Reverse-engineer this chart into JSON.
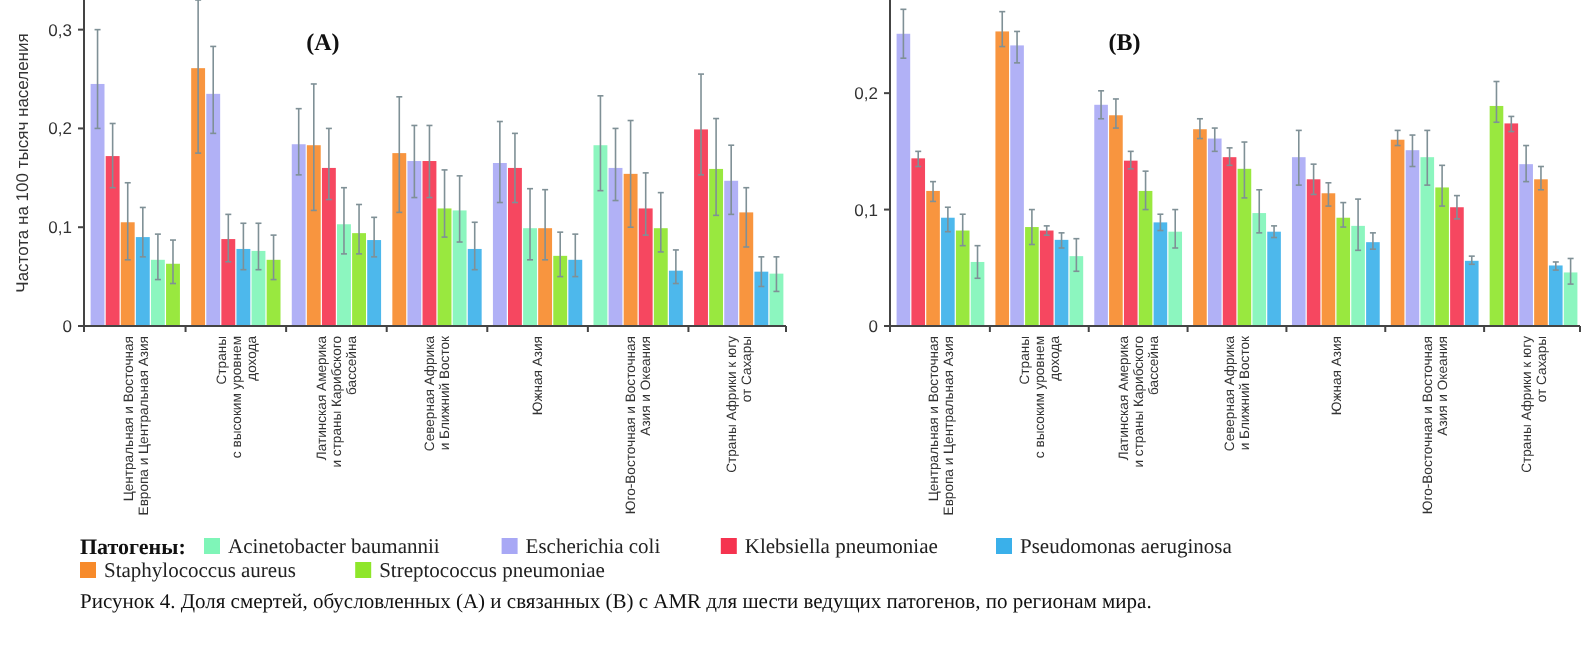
{
  "chart_data": [
    {
      "type": "bar",
      "title": "(A)",
      "ylabel": "Частота на 100 тысяч населения",
      "legend": "bottom",
      "legend_title": "Патогены:",
      "categories": [
        "Центральная и Восточная\nЕвропа и Центральная Азия",
        "Страны\nс высоким уровнем\nдохода",
        "Латинская Америка\nи страны Карибского\nбассейна",
        "Северная Африка\nи Ближний Восток",
        "Южная Азия",
        "Юго-Восточная и Восточная\nАзия и Океания",
        "Страны Африки к югу\nот Сахары"
      ],
      "ylim": [
        0,
        0.33
      ],
      "yticks": [
        0,
        {
          "value": 0.1,
          "label": "0,1"
        },
        {
          "value": 0.2,
          "label": "0,2"
        },
        {
          "value": 0.3,
          "label": "0,3"
        }
      ],
      "series": [
        {
          "name": "Acinetobacter baumannii",
          "color": "#7ff5b8",
          "values": [
            0.067,
            0.076,
            0.103,
            0.117,
            0.099,
            0.183,
            0.053
          ],
          "errors": [
            [
              0.047,
              0.093
            ],
            [
              0.057,
              0.104
            ],
            [
              0.073,
              0.14
            ],
            [
              0.085,
              0.152
            ],
            [
              0.067,
              0.139
            ],
            [
              0.137,
              0.233
            ],
            [
              0.035,
              0.07
            ]
          ]
        },
        {
          "name": "Escherichia coli",
          "color": "#a8a8f5",
          "values": [
            0.245,
            0.235,
            0.184,
            0.167,
            0.165,
            0.16,
            0.147
          ],
          "errors": [
            [
              0.2,
              0.3
            ],
            [
              0.195,
              0.283
            ],
            [
              0.153,
              0.22
            ],
            [
              0.13,
              0.203
            ],
            [
              0.125,
              0.207
            ],
            [
              0.127,
              0.2
            ],
            [
              0.113,
              0.183
            ]
          ]
        },
        {
          "name": "Klebsiella pneumoniae",
          "color": "#f5334f",
          "values": [
            0.172,
            0.088,
            0.16,
            0.167,
            0.16,
            0.119,
            0.199
          ],
          "errors": [
            [
              0.14,
              0.205
            ],
            [
              0.065,
              0.113
            ],
            [
              0.128,
              0.2
            ],
            [
              0.13,
              0.203
            ],
            [
              0.125,
              0.195
            ],
            [
              0.092,
              0.155
            ],
            [
              0.153,
              0.255
            ]
          ]
        },
        {
          "name": "Pseudomonas aeruginosa",
          "color": "#3ab0ea",
          "values": [
            0.09,
            0.078,
            0.087,
            0.078,
            0.067,
            0.056,
            0.055
          ],
          "errors": [
            [
              0.07,
              0.12
            ],
            [
              0.057,
              0.104
            ],
            [
              0.07,
              0.11
            ],
            [
              0.057,
              0.105
            ],
            [
              0.05,
              0.093
            ],
            [
              0.043,
              0.077
            ],
            [
              0.04,
              0.07
            ]
          ]
        },
        {
          "name": "Staphylococcus aureus",
          "color": "#f78a2a",
          "values": [
            0.105,
            0.261,
            0.183,
            0.175,
            0.099,
            0.154,
            0.115
          ],
          "errors": [
            [
              0.067,
              0.145
            ],
            [
              0.175,
              0.33
            ],
            [
              0.117,
              0.245
            ],
            [
              0.115,
              0.232
            ],
            [
              0.067,
              0.138
            ],
            [
              0.1,
              0.208
            ],
            [
              0.08,
              0.14
            ]
          ]
        },
        {
          "name": "Streptococcus pneumoniae",
          "color": "#8ee62a",
          "values": [
            0.063,
            0.067,
            0.094,
            0.119,
            0.071,
            0.099,
            0.159
          ],
          "errors": [
            [
              0.043,
              0.087
            ],
            [
              0.047,
              0.092
            ],
            [
              0.073,
              0.123
            ],
            [
              0.09,
              0.158
            ],
            [
              0.05,
              0.095
            ],
            [
              0.075,
              0.135
            ],
            [
              0.112,
              0.21
            ]
          ]
        }
      ],
      "annotations": [
        "Рисунок 4. Доля смертей, обусловленных (A) и связанных (B) с AMR для шести ведущих патогенов, по регионам мира."
      ]
    },
    {
      "type": "bar",
      "title": "(B)",
      "categories": [
        "Центральная и Восточная\nЕвропа и Центральная Азия",
        "Страны\nс высоким уровнем\nдохода",
        "Латинская Америка\nи страны Карибского\nбассейна",
        "Северная Африка\nи Ближний Восток",
        "Южная Азия",
        "Юго-Восточная и Восточная\nАзия и Океания",
        "Страны Африки к югу\nот Сахары"
      ],
      "ylim": [
        0,
        0.28
      ],
      "yticks": [
        0,
        {
          "value": 0.1,
          "label": "0,1"
        },
        {
          "value": 0.2,
          "label": "0,2"
        }
      ],
      "series": [
        {
          "color": "#7ff5b8",
          "values": [
            0.055,
            0.06,
            0.081,
            0.097,
            0.086,
            0.145,
            0.046
          ],
          "errors": [
            [
              0.041,
              0.069
            ],
            [
              0.047,
              0.075
            ],
            [
              0.067,
              0.1
            ],
            [
              0.08,
              0.117
            ],
            [
              0.065,
              0.109
            ],
            [
              0.121,
              0.168
            ],
            [
              0.036,
              0.058
            ]
          ]
        },
        {
          "color": "#a8a8f5",
          "values": [
            0.251,
            0.241,
            0.19,
            0.161,
            0.145,
            0.151,
            0.139
          ],
          "errors": [
            [
              0.23,
              0.272
            ],
            [
              0.226,
              0.253
            ],
            [
              0.178,
              0.202
            ],
            [
              0.15,
              0.17
            ],
            [
              0.121,
              0.168
            ],
            [
              0.137,
              0.164
            ],
            [
              0.124,
              0.155
            ]
          ]
        },
        {
          "color": "#f5334f",
          "values": [
            0.144,
            0.082,
            0.142,
            0.145,
            0.126,
            0.102,
            0.174
          ],
          "errors": [
            [
              0.137,
              0.15
            ],
            [
              0.078,
              0.086
            ],
            [
              0.135,
              0.15
            ],
            [
              0.138,
              0.153
            ],
            [
              0.113,
              0.139
            ],
            [
              0.092,
              0.112
            ],
            [
              0.167,
              0.18
            ]
          ]
        },
        {
          "color": "#3ab0ea",
          "values": [
            0.093,
            0.074,
            0.089,
            0.081,
            0.072,
            0.056,
            0.052
          ],
          "errors": [
            [
              0.081,
              0.102
            ],
            [
              0.067,
              0.08
            ],
            [
              0.082,
              0.096
            ],
            [
              0.076,
              0.086
            ],
            [
              0.066,
              0.08
            ],
            [
              0.053,
              0.06
            ],
            [
              0.048,
              0.055
            ]
          ]
        },
        {
          "color": "#f78a2a",
          "values": [
            0.116,
            0.253,
            0.181,
            0.169,
            0.114,
            0.16,
            0.126
          ],
          "errors": [
            [
              0.107,
              0.124
            ],
            [
              0.24,
              0.27
            ],
            [
              0.17,
              0.195
            ],
            [
              0.161,
              0.178
            ],
            [
              0.103,
              0.123
            ],
            [
              0.155,
              0.168
            ],
            [
              0.117,
              0.137
            ]
          ]
        },
        {
          "color": "#8ee62a",
          "values": [
            0.082,
            0.085,
            0.116,
            0.135,
            0.093,
            0.119,
            0.189
          ],
          "errors": [
            [
              0.069,
              0.096
            ],
            [
              0.07,
              0.1
            ],
            [
              0.1,
              0.133
            ],
            [
              0.11,
              0.158
            ],
            [
              0.085,
              0.106
            ],
            [
              0.103,
              0.138
            ],
            [
              0.175,
              0.21
            ]
          ]
        }
      ]
    }
  ]
}
